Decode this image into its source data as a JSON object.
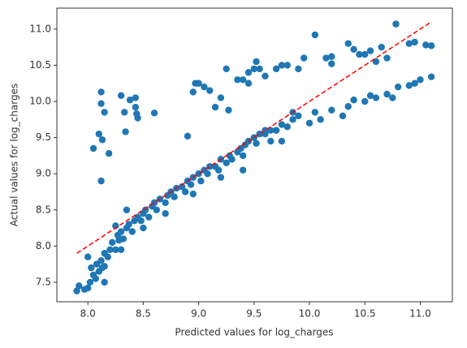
{
  "chart_data": {
    "type": "scatter",
    "x_label": "Predicted values for log_charges",
    "y_label": "Actual values for log_charges",
    "color": "#1f77b4",
    "xlim": [
      7.72,
      11.29
    ],
    "ylim": [
      7.23,
      11.29
    ],
    "xticks": [
      {
        "value": 8,
        "label": "8.0"
      },
      8.5,
      {
        "value": 9,
        "label": "9.0"
      },
      9.5,
      {
        "value": 10,
        "label": "10.0"
      },
      10.5,
      {
        "value": 11,
        "label": "11.0"
      }
    ],
    "yticks": [
      7.5,
      {
        "value": 8,
        "label": "8.0"
      },
      8.5,
      {
        "value": 9,
        "label": "9.0"
      },
      9.5,
      {
        "value": 10,
        "label": "10.0"
      },
      10.5,
      {
        "value": 11,
        "label": "11.0"
      }
    ],
    "reference_line": {
      "x": [
        7.9,
        11.1
      ],
      "y": [
        7.9,
        11.1
      ],
      "color": "#ff0000"
    },
    "x": [
      7.9,
      7.92,
      7.97,
      8.0,
      8.02,
      8.05,
      8.03,
      8.07,
      8.08,
      8.1,
      8.12,
      8.13,
      8.15,
      8.15,
      8.18,
      8.2,
      8.22,
      8.25,
      8.27,
      8.28,
      8.3,
      8.32,
      8.35,
      8.37,
      8.4,
      8.42,
      8.45,
      8.48,
      8.5,
      8.52,
      8.55,
      8.58,
      8.6,
      8.62,
      8.65,
      8.7,
      8.72,
      8.75,
      8.78,
      8.8,
      8.85,
      8.88,
      8.9,
      8.93,
      8.95,
      9.0,
      9.02,
      9.05,
      9.08,
      9.1,
      9.15,
      9.18,
      9.2,
      9.25,
      9.28,
      9.3,
      9.35,
      9.38,
      9.4,
      9.42,
      9.45,
      9.5,
      9.52,
      9.55,
      9.6,
      9.65,
      9.7,
      9.75,
      9.8,
      8.3,
      8.5,
      8.7,
      8.95,
      9.2,
      9.4,
      8.15,
      8.0,
      8.35,
      8.25,
      9.85,
      9.9,
      10.0,
      10.05,
      10.1,
      10.2,
      10.3,
      10.35,
      10.4,
      10.5,
      10.55,
      10.6,
      10.7,
      10.75,
      10.8,
      10.9,
      10.95,
      11.0,
      11.1,
      9.7,
      9.75,
      9.85,
      9.6,
      9.65,
      8.05,
      8.1,
      8.12,
      8.12,
      8.13,
      8.15,
      8.19,
      8.12,
      8.3,
      8.33,
      8.34,
      8.38,
      8.43,
      8.43,
      8.45,
      8.44,
      8.6,
      8.9,
      8.95,
      8.97,
      9.0,
      9.05,
      9.1,
      9.15,
      9.2,
      9.25,
      9.27,
      9.35,
      9.4,
      9.45,
      9.45,
      9.5,
      9.52,
      9.55,
      9.6,
      9.7,
      9.75,
      9.8,
      9.9,
      9.95,
      10.05,
      10.15,
      10.2,
      10.2,
      10.35,
      10.4,
      10.45,
      10.5,
      10.55,
      10.6,
      10.65,
      10.7,
      10.78,
      10.9,
      10.95,
      11.05,
      11.1
    ],
    "y": [
      7.38,
      7.45,
      7.4,
      7.42,
      7.5,
      7.6,
      7.7,
      7.55,
      7.75,
      7.65,
      7.8,
      7.7,
      7.72,
      7.9,
      7.85,
      7.95,
      8.05,
      7.95,
      8.15,
      8.08,
      8.2,
      8.1,
      8.25,
      8.3,
      8.2,
      8.35,
      8.4,
      8.35,
      8.45,
      8.5,
      8.4,
      8.55,
      8.6,
      8.5,
      8.65,
      8.6,
      8.7,
      8.75,
      8.68,
      8.8,
      8.82,
      8.75,
      8.9,
      8.85,
      8.95,
      9.0,
      8.9,
      9.05,
      9.0,
      9.1,
      9.1,
      9.05,
      9.2,
      9.15,
      9.25,
      9.2,
      9.3,
      9.35,
      9.25,
      9.4,
      9.45,
      9.5,
      9.42,
      9.55,
      9.55,
      9.6,
      9.6,
      9.45,
      9.65,
      7.95,
      8.25,
      8.45,
      8.72,
      8.95,
      9.05,
      7.5,
      7.85,
      8.5,
      8.28,
      9.75,
      9.8,
      9.7,
      9.85,
      9.75,
      9.88,
      9.8,
      9.93,
      10.02,
      10.0,
      10.08,
      10.05,
      10.1,
      10.05,
      10.2,
      10.22,
      10.25,
      10.3,
      10.34,
      9.6,
      9.68,
      9.85,
      9.6,
      9.45,
      9.35,
      9.55,
      10.13,
      9.97,
      9.47,
      9.85,
      9.28,
      8.9,
      10.08,
      9.85,
      9.58,
      10.02,
      10.05,
      9.92,
      9.77,
      9.83,
      9.84,
      9.52,
      10.13,
      10.25,
      10.25,
      10.2,
      10.15,
      9.92,
      10.05,
      10.45,
      9.88,
      10.3,
      10.3,
      10.4,
      10.25,
      10.45,
      10.55,
      10.45,
      10.35,
      10.45,
      10.5,
      10.5,
      10.45,
      10.6,
      10.92,
      10.6,
      10.62,
      10.52,
      10.8,
      10.72,
      10.65,
      10.65,
      10.7,
      10.55,
      10.75,
      10.6,
      11.07,
      10.8,
      10.82,
      10.78,
      10.77
    ]
  }
}
